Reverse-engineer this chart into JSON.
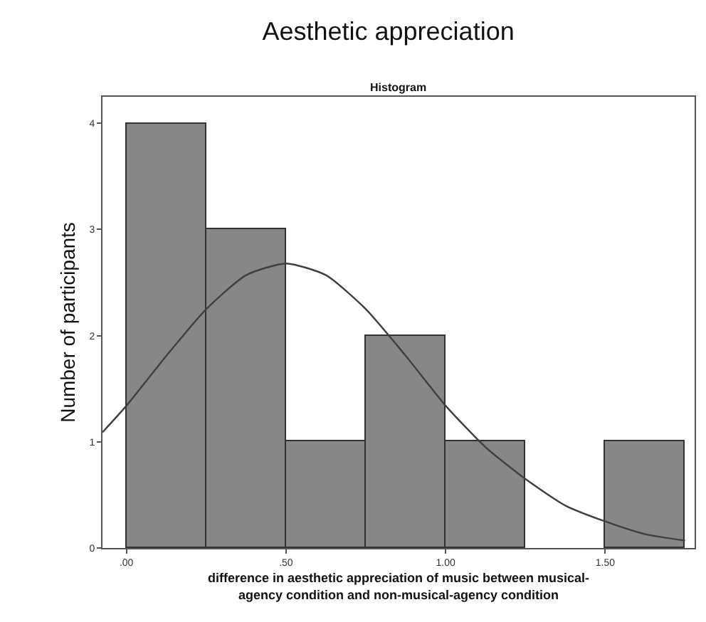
{
  "chart_data": {
    "type": "histogram",
    "title": "Aesthetic appreciation",
    "subtitle": "Histogram",
    "ylabel": "Number of participants",
    "xlabel": "difference in aesthetic appreciation of music between musical-\nagency condition and non-musical-agency condition",
    "bins": [
      0,
      0.25,
      0.5,
      0.75,
      1.0,
      1.25,
      1.5,
      1.75
    ],
    "values": [
      4,
      3,
      1,
      2,
      1,
      0,
      1
    ],
    "color": "#878787",
    "series": [
      {
        "type": "line",
        "color": "#404040",
        "x": [
          -0.075,
          0,
          0.125,
          0.25,
          0.375,
          0.5,
          0.625,
          0.75,
          0.875,
          1.0,
          1.125,
          1.25,
          1.375,
          1.5,
          1.625,
          1.75
        ],
        "values": [
          1.09,
          1.34,
          1.81,
          2.25,
          2.57,
          2.68,
          2.57,
          2.25,
          1.81,
          1.34,
          0.95,
          0.65,
          0.4,
          0.25,
          0.13,
          0.07
        ]
      }
    ],
    "xlim": [
      -0.075,
      1.78
    ],
    "ylim": [
      0,
      4.25
    ],
    "xticks": [
      {
        "value": 0,
        "label": ".00"
      },
      {
        "value": 0.5,
        "label": ".50"
      },
      {
        "value": 1.0,
        "label": "1.00"
      },
      {
        "value": 1.5,
        "label": "1.50"
      }
    ],
    "yticks": [
      0,
      1,
      2,
      3,
      4
    ]
  }
}
